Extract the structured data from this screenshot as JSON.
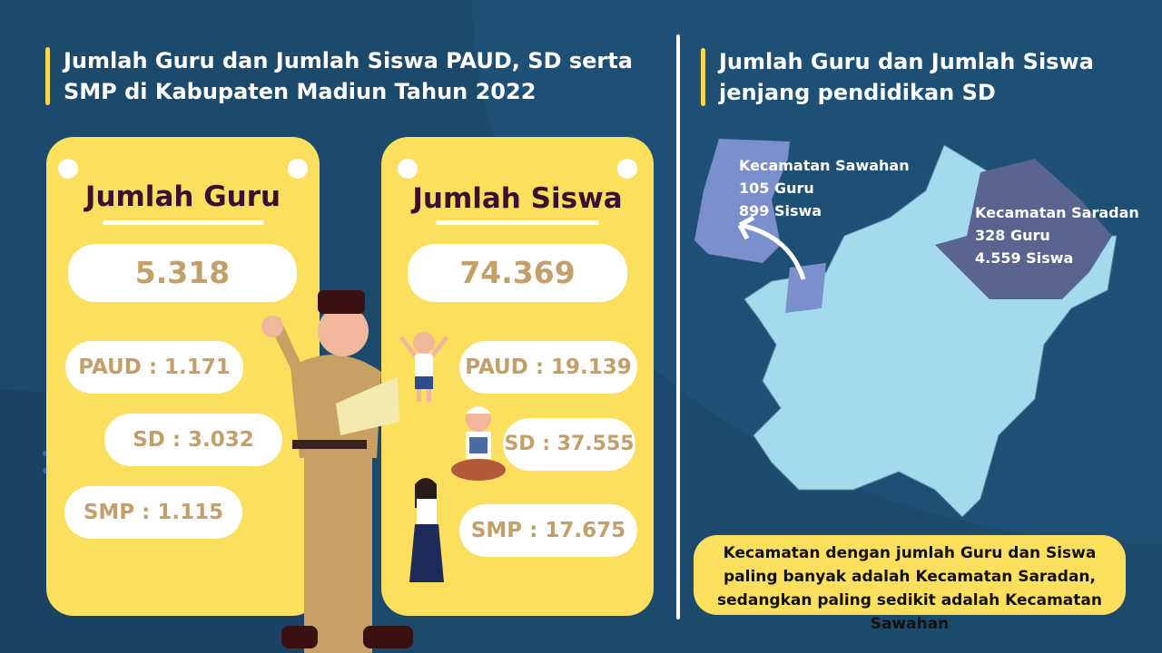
{
  "left_title": "Jumlah Guru dan Jumlah Siswa PAUD, SD serta SMP di Kabupaten Madiun Tahun 2022",
  "guru_card": {
    "heading": "Jumlah Guru",
    "total": "5.318",
    "paud": "PAUD : 1.171",
    "sd": "SD : 3.032",
    "smp": "SMP : 1.115"
  },
  "siswa_card": {
    "heading": "Jumlah Siswa",
    "total": "74.369",
    "paud": "PAUD : 19.139",
    "sd": "SD : 37.555",
    "smp": "SMP : 17.675"
  },
  "right_title": "Jumlah Guru dan Jumlah Siswa jenjang pendidikan SD",
  "map": {
    "sawahan": {
      "name": "Kecamatan Sawahan",
      "guru": "105 Guru",
      "siswa": "899 Siswa",
      "color": "#7a8fcc"
    },
    "saradan": {
      "name": "Kecamatan Saradan",
      "guru": "328 Guru",
      "siswa": "4.559 Siswa",
      "color": "#596491"
    },
    "base_color": "#a3dbec"
  },
  "note": "Kecamatan dengan jumlah Guru dan Siswa paling banyak adalah Kecamatan Saradan, sedangkan paling sedikit adalah Kecamatan Sawahan",
  "colors": {
    "background": "#1c4a6d",
    "card": "#fddf5e",
    "number": "#c3a06a"
  }
}
